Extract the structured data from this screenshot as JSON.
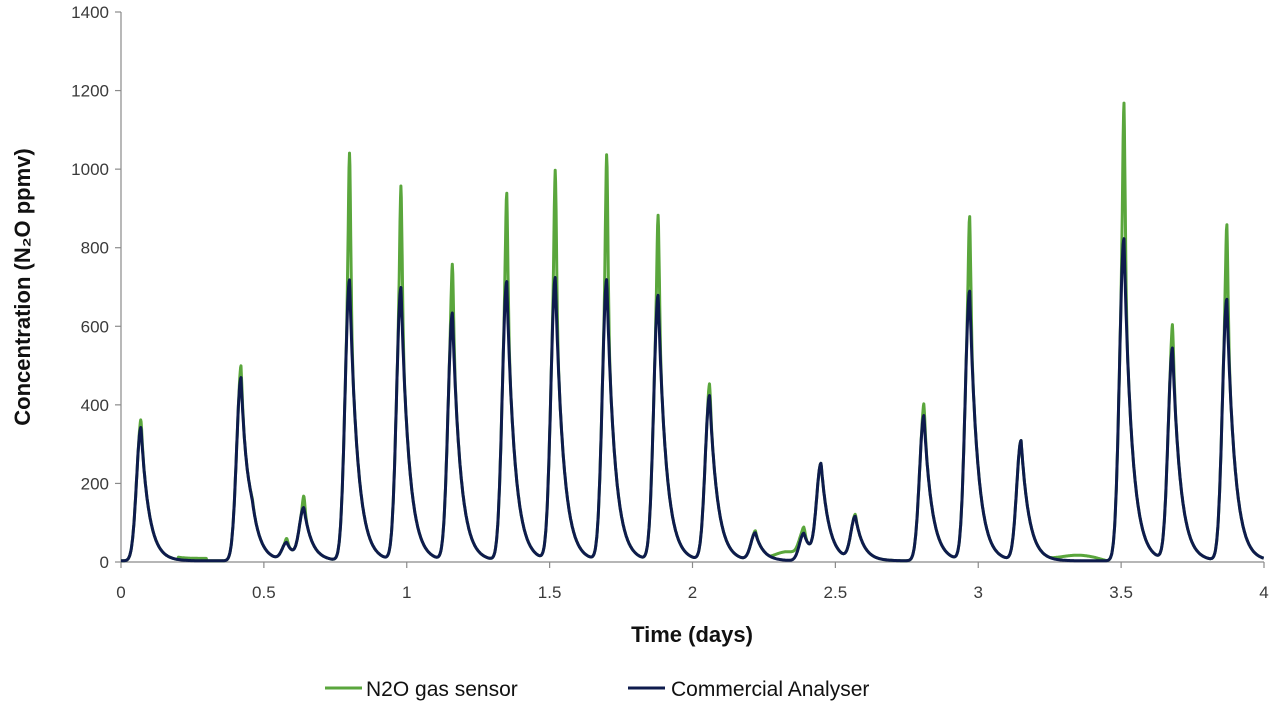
{
  "chart_data": {
    "type": "line",
    "xlabel": "Time (days)",
    "ylabel": "Concentration (N₂O ppmv)",
    "xlim": [
      0,
      4
    ],
    "ylim": [
      0,
      1400
    ],
    "x_ticks": [
      "0",
      "0.5",
      "1",
      "1.5",
      "2",
      "2.5",
      "3",
      "3.5",
      "4"
    ],
    "y_ticks": [
      "0",
      "200",
      "400",
      "600",
      "800",
      "1000",
      "1200",
      "1400"
    ],
    "grid": false,
    "legend_position": "bottom",
    "series": [
      {
        "name": "N2O gas sensor",
        "color": "#5aa63c",
        "peaks_time_days": [
          0.07,
          0.42,
          0.46,
          0.58,
          0.64,
          0.8,
          0.98,
          1.16,
          1.35,
          1.52,
          1.7,
          1.88,
          2.06,
          2.22,
          2.39,
          2.45,
          2.57,
          2.81,
          2.97,
          3.15,
          3.51,
          3.68,
          3.87
        ],
        "peaks_ppmv": [
          360,
          495,
          45,
          55,
          160,
          1040,
          955,
          755,
          935,
          995,
          1035,
          880,
          450,
          75,
          80,
          240,
          115,
          400,
          875,
          305,
          1165,
          600,
          855
        ]
      },
      {
        "name": "Commercial Analyser",
        "color": "#0e1b4d",
        "peaks_time_days": [
          0.07,
          0.42,
          0.46,
          0.58,
          0.64,
          0.8,
          0.98,
          1.16,
          1.35,
          1.52,
          1.7,
          1.88,
          2.06,
          2.22,
          2.39,
          2.45,
          2.57,
          2.81,
          2.97,
          3.15,
          3.51,
          3.68,
          3.87
        ],
        "peaks_ppmv": [
          340,
          465,
          40,
          45,
          130,
          715,
          695,
          630,
          710,
          720,
          715,
          675,
          420,
          70,
          70,
          240,
          110,
          370,
          685,
          305,
          820,
          540,
          665
        ]
      }
    ]
  }
}
